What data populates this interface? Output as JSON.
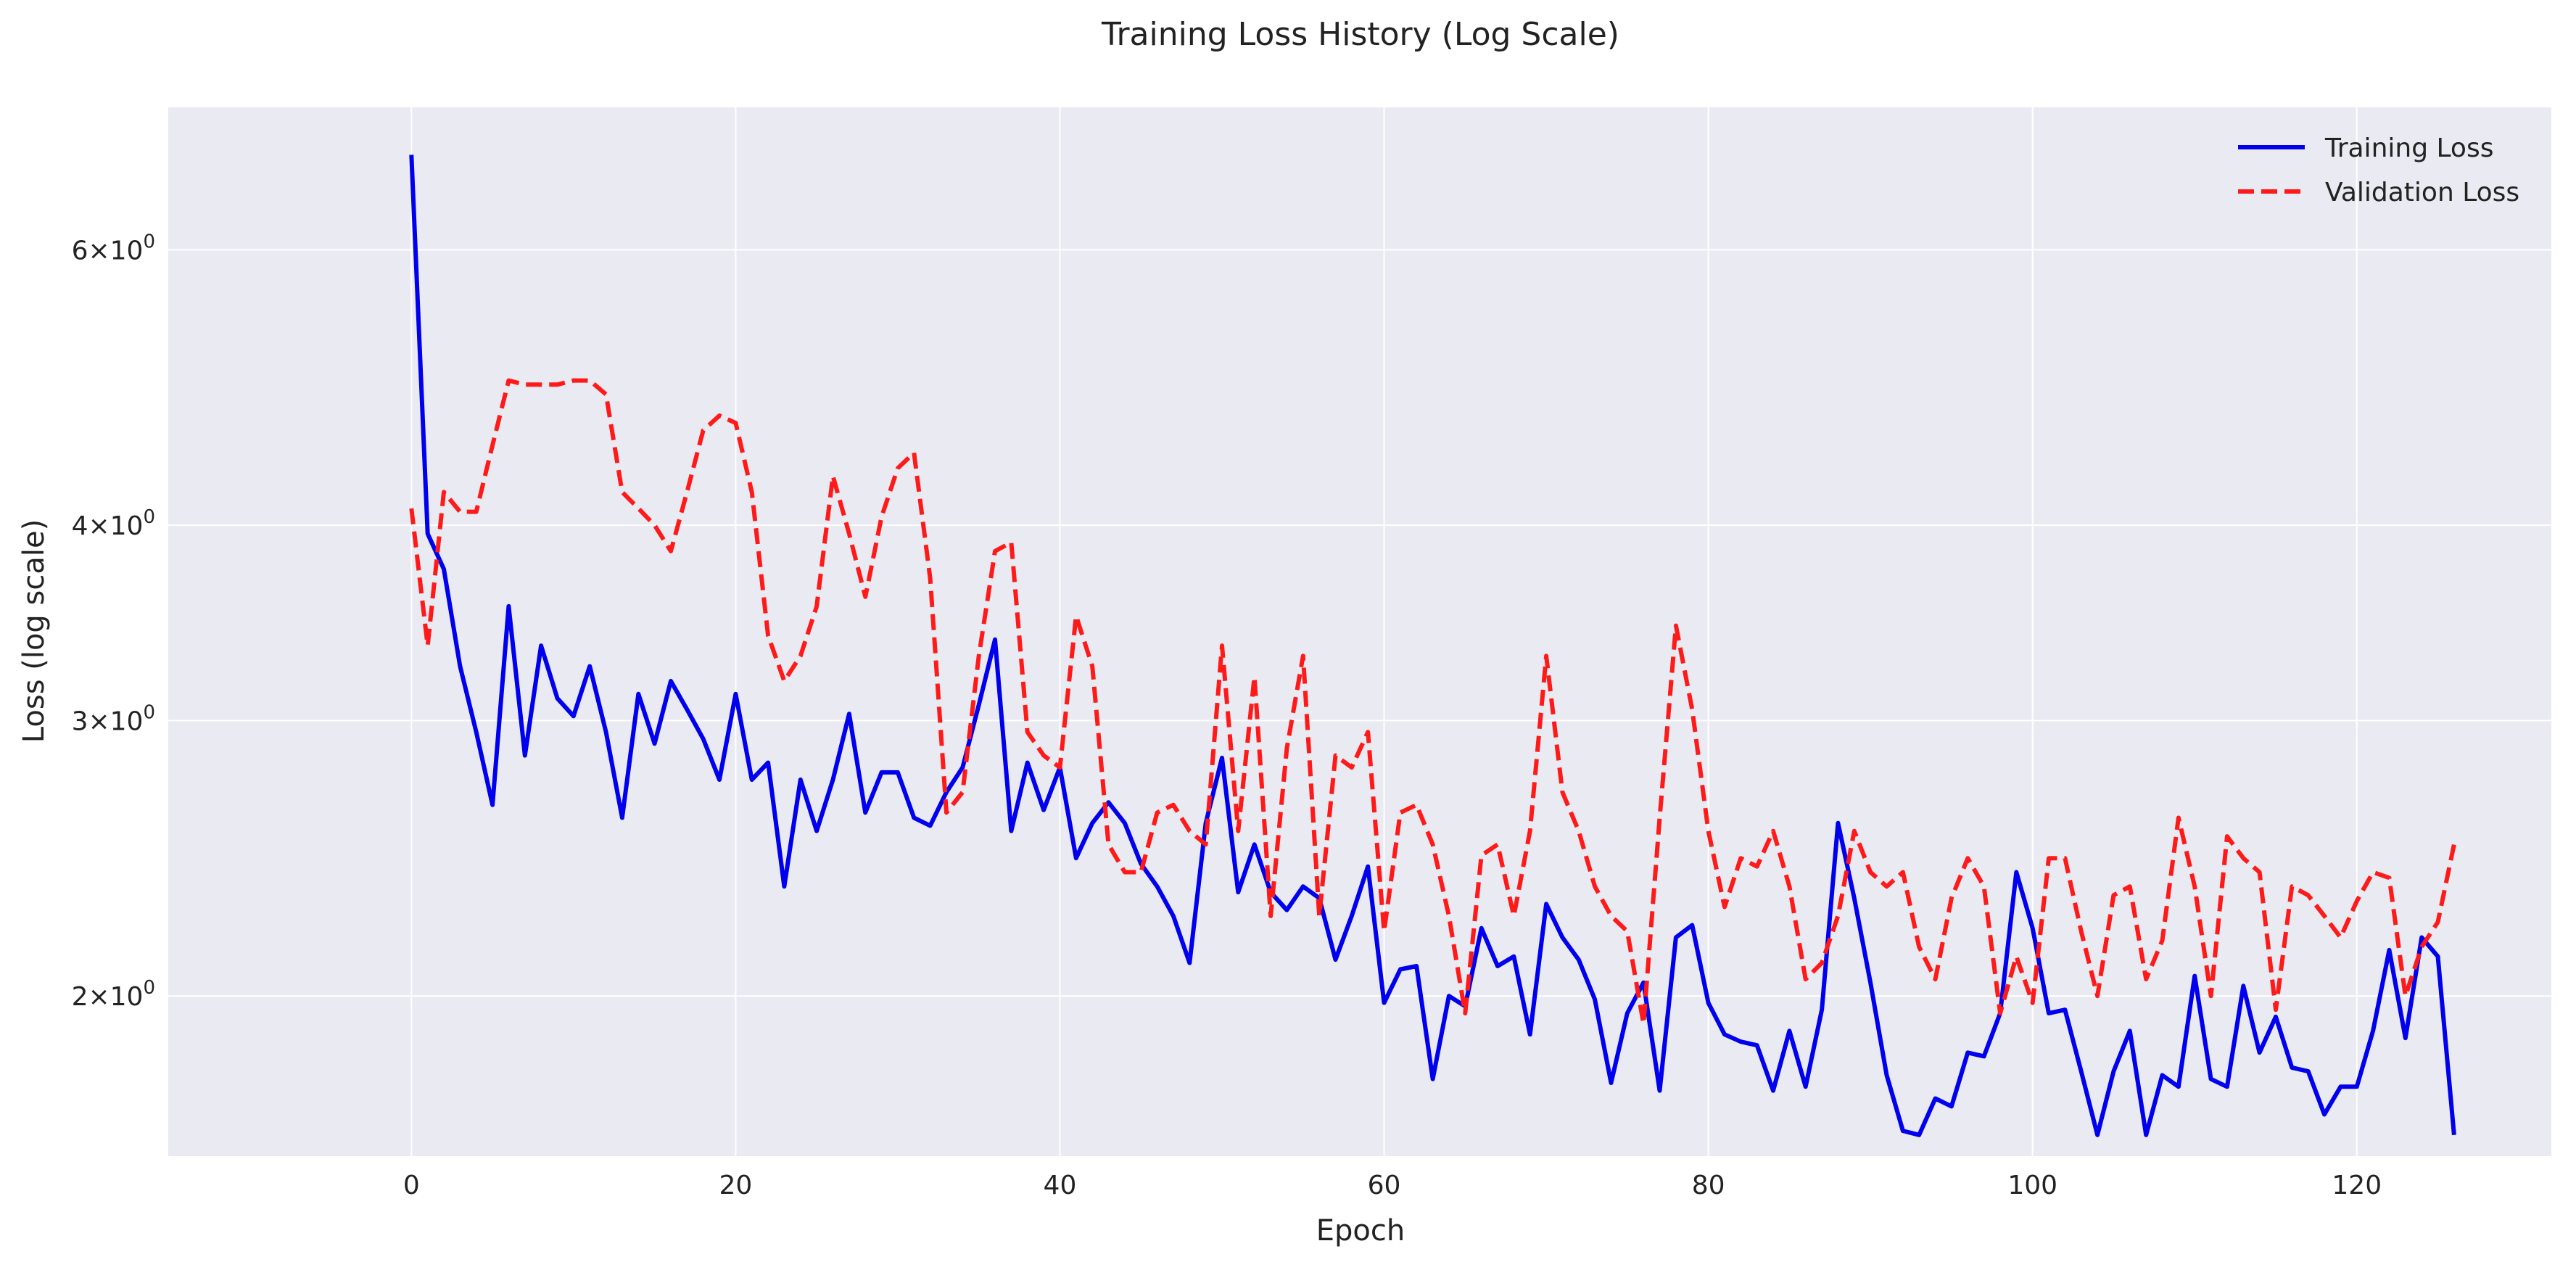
{
  "chart_data": {
    "type": "line",
    "title": "Training Loss History (Log Scale)",
    "xlabel": "Epoch",
    "ylabel": "Loss (log scale)",
    "yscale": "log",
    "xlim": [
      -15,
      132
    ],
    "ylim": [
      1.58,
      7.4
    ],
    "x_ticks": [
      0,
      20,
      40,
      60,
      80,
      100,
      120
    ],
    "y_ticks": [
      {
        "value": 2,
        "label_base": "2",
        "label_mid": "×",
        "label_exp_base": "10",
        "label_exp": "0"
      },
      {
        "value": 3,
        "label_base": "3",
        "label_mid": "×",
        "label_exp_base": "10",
        "label_exp": "0"
      },
      {
        "value": 4,
        "label_base": "4",
        "label_mid": "×",
        "label_exp_base": "10",
        "label_exp": "0"
      },
      {
        "value": 6,
        "label_base": "6",
        "label_mid": "×",
        "label_exp_base": "10",
        "label_exp": "0"
      }
    ],
    "grid": true,
    "legend_position": "top-right",
    "series": [
      {
        "name": "Training Loss",
        "color": "#0000ee",
        "style": "solid",
        "values": [
          6.9,
          3.95,
          3.75,
          3.25,
          2.95,
          2.65,
          3.55,
          2.85,
          3.35,
          3.1,
          3.02,
          3.25,
          2.95,
          2.6,
          3.12,
          2.9,
          3.18,
          3.05,
          2.92,
          2.75,
          3.12,
          2.75,
          2.82,
          2.35,
          2.75,
          2.55,
          2.75,
          3.03,
          2.62,
          2.78,
          2.78,
          2.6,
          2.57,
          2.7,
          2.8,
          3.07,
          3.38,
          2.55,
          2.82,
          2.63,
          2.8,
          2.45,
          2.58,
          2.66,
          2.58,
          2.43,
          2.35,
          2.25,
          2.1,
          2.58,
          2.84,
          2.33,
          2.5,
          2.33,
          2.27,
          2.35,
          2.31,
          2.11,
          2.25,
          2.42,
          1.98,
          2.08,
          2.09,
          1.77,
          2.0,
          1.97,
          2.21,
          2.09,
          2.12,
          1.89,
          2.29,
          2.18,
          2.11,
          1.99,
          1.76,
          1.95,
          2.04,
          1.74,
          2.18,
          2.22,
          1.98,
          1.89,
          1.87,
          1.86,
          1.74,
          1.9,
          1.75,
          1.96,
          2.58,
          2.31,
          2.04,
          1.78,
          1.64,
          1.63,
          1.72,
          1.7,
          1.84,
          1.83,
          1.95,
          2.4,
          2.21,
          1.95,
          1.96,
          1.79,
          1.63,
          1.79,
          1.9,
          1.63,
          1.78,
          1.75,
          2.06,
          1.77,
          1.75,
          2.03,
          1.84,
          1.94,
          1.8,
          1.79,
          1.68,
          1.75,
          1.75,
          1.9,
          2.14,
          1.88,
          2.18,
          2.12,
          1.63
        ]
      },
      {
        "name": "Validation Loss",
        "color": "#ff1a1a",
        "style": "dashed",
        "values": [
          4.1,
          3.35,
          4.2,
          4.08,
          4.08,
          4.5,
          4.95,
          4.92,
          4.92,
          4.92,
          4.95,
          4.95,
          4.85,
          4.2,
          4.1,
          4.0,
          3.85,
          4.2,
          4.6,
          4.7,
          4.65,
          4.2,
          3.4,
          3.18,
          3.3,
          3.55,
          4.3,
          3.95,
          3.6,
          4.05,
          4.35,
          4.45,
          3.7,
          2.62,
          2.7,
          3.3,
          3.85,
          3.9,
          2.95,
          2.85,
          2.8,
          3.5,
          3.25,
          2.5,
          2.4,
          2.4,
          2.62,
          2.65,
          2.55,
          2.5,
          3.35,
          2.55,
          3.2,
          2.25,
          2.88,
          3.3,
          2.25,
          2.85,
          2.8,
          2.95,
          2.2,
          2.62,
          2.65,
          2.5,
          2.25,
          1.95,
          2.46,
          2.5,
          2.25,
          2.55,
          3.3,
          2.7,
          2.55,
          2.35,
          2.25,
          2.2,
          1.92,
          2.6,
          3.45,
          3.05,
          2.55,
          2.28,
          2.45,
          2.42,
          2.55,
          2.35,
          2.05,
          2.1,
          2.25,
          2.55,
          2.4,
          2.35,
          2.4,
          2.15,
          2.05,
          2.31,
          2.45,
          2.35,
          1.95,
          2.12,
          1.98,
          2.45,
          2.45,
          2.2,
          2.0,
          2.32,
          2.35,
          2.05,
          2.17,
          2.6,
          2.35,
          2.0,
          2.53,
          2.45,
          2.4,
          1.96,
          2.35,
          2.32,
          2.25,
          2.18,
          2.3,
          2.4,
          2.38,
          2.0,
          2.15,
          2.23,
          2.5
        ]
      }
    ]
  }
}
